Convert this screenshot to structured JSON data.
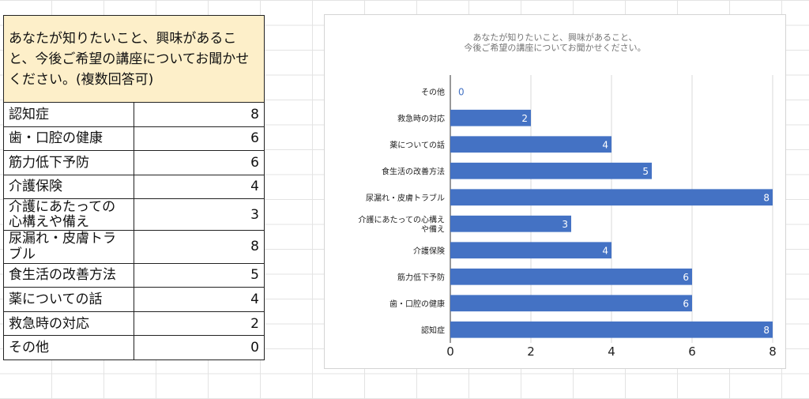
{
  "table": {
    "header": "あなたが知りたいこと、興味があること、今後ご希望の講座についてお聞かせください。(複数回答可)",
    "rows": [
      {
        "label": "認知症",
        "value": "8"
      },
      {
        "label": "歯・口腔の健康",
        "value": "6"
      },
      {
        "label": "筋力低下予防",
        "value": "6"
      },
      {
        "label": "介護保険",
        "value": "4"
      },
      {
        "label": "介護にあたっての心構えや備え",
        "value": "3"
      },
      {
        "label": "尿漏れ・皮膚トラブル",
        "value": "8"
      },
      {
        "label": "食生活の改善方法",
        "value": "5"
      },
      {
        "label": "薬についての話",
        "value": "4"
      },
      {
        "label": "救急時の対応",
        "value": "2"
      },
      {
        "label": "その他",
        "value": "0"
      }
    ]
  },
  "chart_data": {
    "type": "bar",
    "orientation": "horizontal",
    "title_lines": [
      "あなたが知りたいこと、興味があること、",
      "今後ご希望の講座についてお聞かせください。"
    ],
    "categories": [
      "その他",
      "救急時の対応",
      "薬についての話",
      "食生活の改善方法",
      "尿漏れ・皮膚トラブル",
      "介護にあたっての心構えや備え",
      "介護保険",
      "筋力低下予防",
      "歯・口腔の健康",
      "認知症"
    ],
    "values": [
      0,
      2,
      4,
      5,
      8,
      3,
      4,
      6,
      6,
      8
    ],
    "xlim": [
      0,
      8
    ],
    "xticks": [
      0,
      2,
      4,
      6,
      8
    ],
    "grid": true,
    "bar_color": "#4472c4",
    "title_color": "#757575"
  }
}
